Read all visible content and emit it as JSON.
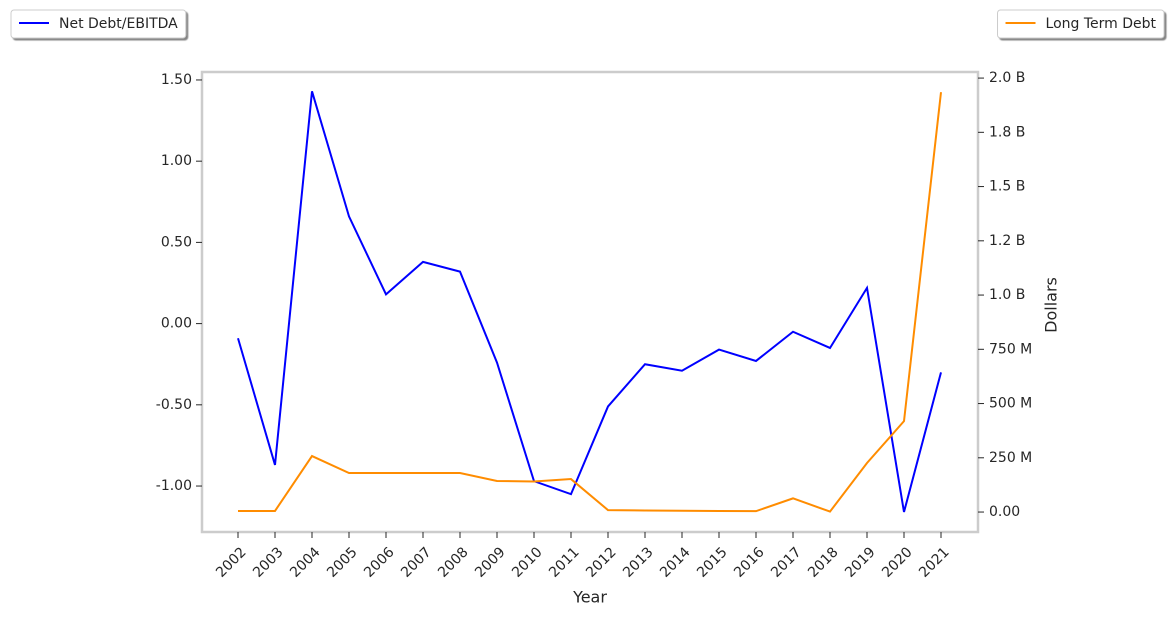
{
  "chart_data": {
    "type": "line",
    "x_label": "Year",
    "y2_label": "Dollars",
    "categories": [
      "2002",
      "2003",
      "2004",
      "2005",
      "2006",
      "2007",
      "2008",
      "2009",
      "2010",
      "2011",
      "2012",
      "2013",
      "2014",
      "2015",
      "2016",
      "2017",
      "2018",
      "2019",
      "2020",
      "2021"
    ],
    "series": [
      {
        "name": "Net Debt/EBITDA",
        "color": "#0000ff",
        "axis": "y",
        "legend": "upper left",
        "values": [
          -0.09,
          -0.87,
          1.43,
          0.66,
          0.18,
          0.38,
          0.32,
          -0.24,
          -0.97,
          -1.05,
          -0.51,
          -0.25,
          -0.29,
          -0.16,
          -0.23,
          -0.05,
          -0.15,
          0.22,
          -1.16,
          -0.3
        ]
      },
      {
        "name": "Long Term Debt",
        "color": "#ff8c00",
        "axis": "y2",
        "legend": "upper right",
        "values": [
          5000000,
          5000000,
          258000000,
          180000000,
          180000000,
          180000000,
          180000000,
          143000000,
          141000000,
          152000000,
          9000000,
          7000000,
          6000000,
          5000000,
          4000000,
          63000000,
          2000000,
          226000000,
          419000000,
          1935000000
        ]
      }
    ],
    "ylim": [
      -1.283,
      1.549
    ],
    "yticks": [
      {
        "value": -1.0,
        "label": "-1.00"
      },
      {
        "value": -0.5,
        "label": "-0.50"
      },
      {
        "value": 0,
        "label": "0.00"
      },
      {
        "value": 0.5,
        "label": "0.50"
      },
      {
        "value": 1.0,
        "label": "1.00"
      },
      {
        "value": 1.5,
        "label": "1.50"
      }
    ],
    "y2lim": [
      -92000000,
      2028000000
    ],
    "y2ticks": [
      {
        "value": 0,
        "label": "0.00"
      },
      {
        "value": 250000000,
        "label": "250 M"
      },
      {
        "value": 500000000,
        "label": "500 M"
      },
      {
        "value": 750000000,
        "label": "750 M"
      },
      {
        "value": 1000000000,
        "label": "1.0 B"
      },
      {
        "value": 1250000000,
        "label": "1.2 B"
      },
      {
        "value": 1500000000,
        "label": "1.5 B"
      },
      {
        "value": 1750000000,
        "label": "1.8 B"
      },
      {
        "value": 2000000000,
        "label": "2.0 B"
      }
    ]
  }
}
